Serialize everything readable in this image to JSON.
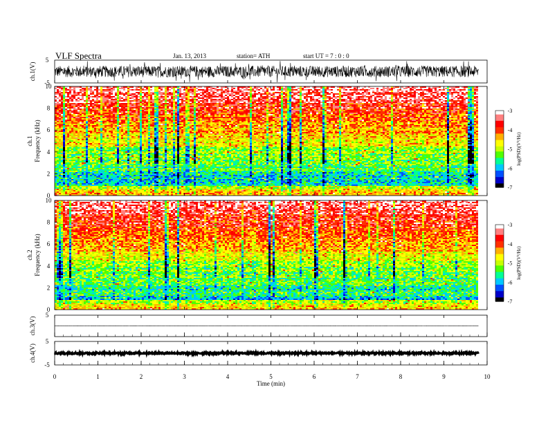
{
  "header": {
    "title": "VLF  Spectra",
    "date": "Jan. 13, 2013",
    "station": "station= ATH",
    "start": "start  UT  =   7  : 0  : 0"
  },
  "chart_data": [
    {
      "type": "line",
      "ylabel": "ch.1(V)",
      "ylim": [
        -5,
        5
      ],
      "yticks": [
        "5",
        "-5"
      ],
      "description_series": "waveform",
      "amplitude": 2.5
    },
    {
      "type": "heatmap",
      "ylabel_top": "ch.1",
      "ylabel": "Frequency  (kHz)",
      "ylim": [
        0,
        10
      ],
      "yticks": [
        "0",
        "2",
        "4",
        "6",
        "8",
        "10"
      ],
      "colorbar": {
        "label": "log(PSD)(V²/Hz)",
        "range": [
          -7,
          -3
        ],
        "ticks": [
          "-3",
          "-4",
          "-5",
          "-6",
          "-7"
        ]
      }
    },
    {
      "type": "heatmap",
      "ylabel_top": "ch.2",
      "ylabel": "Frequency  (kHz)",
      "ylim": [
        0,
        10
      ],
      "yticks": [
        "0",
        "2",
        "4",
        "6",
        "8",
        "10"
      ],
      "colorbar": {
        "label": "log(PSD)(V²/Hz)",
        "range": [
          -7,
          -3
        ],
        "ticks": [
          "-3",
          "-4",
          "-5",
          "-6",
          "-7"
        ]
      }
    },
    {
      "type": "line",
      "ylabel": "ch.3(V)",
      "ylim": [
        -5,
        5
      ],
      "yticks": [
        "5"
      ],
      "amplitude": 0.05
    },
    {
      "type": "line",
      "ylabel": "ch.4(V)",
      "ylim": [
        -5,
        5
      ],
      "yticks": [
        "5",
        "-5"
      ],
      "amplitude": 0.3
    }
  ],
  "xaxis": {
    "label": "Time  (min)",
    "xlim": [
      0,
      10
    ],
    "ticks": [
      "0",
      "1",
      "2",
      "3",
      "4",
      "5",
      "6",
      "7",
      "8",
      "9",
      "10"
    ],
    "data_end": 9.8
  },
  "colors": {
    "scale": [
      "#000000",
      "#0000c8",
      "#0050ff",
      "#00c8ff",
      "#00ff96",
      "#50ff00",
      "#c8ff00",
      "#ffff00",
      "#ffb000",
      "#ff3000",
      "#ff0000",
      "#ff8080",
      "#ffffff"
    ]
  }
}
